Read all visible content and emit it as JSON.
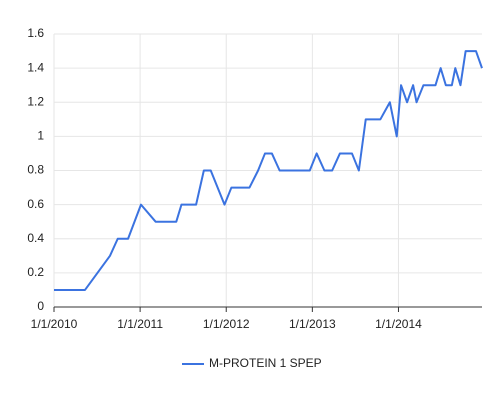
{
  "chart_data": {
    "type": "line",
    "x": [
      2010.0,
      2010.36,
      2010.65,
      2010.74,
      2010.86,
      2011.01,
      2011.18,
      2011.42,
      2011.48,
      2011.65,
      2011.74,
      2011.82,
      2011.98,
      2012.06,
      2012.27,
      2012.37,
      2012.45,
      2012.53,
      2012.62,
      2012.97,
      2013.05,
      2013.14,
      2013.23,
      2013.32,
      2013.46,
      2013.54,
      2013.62,
      2013.79,
      2013.9,
      2013.98,
      2014.03,
      2014.1,
      2014.17,
      2014.21,
      2014.29,
      2014.43,
      2014.49,
      2014.55,
      2014.62,
      2014.66,
      2014.72,
      2014.78,
      2014.9,
      2014.97
    ],
    "series": [
      {
        "name": "M-PROTEIN 1 SPEP",
        "color": "#3b73e0",
        "values": [
          0.1,
          0.1,
          0.3,
          0.4,
          0.4,
          0.6,
          0.5,
          0.5,
          0.6,
          0.6,
          0.8,
          0.8,
          0.6,
          0.7,
          0.7,
          0.8,
          0.9,
          0.9,
          0.8,
          0.8,
          0.9,
          0.8,
          0.8,
          0.9,
          0.9,
          0.8,
          1.1,
          1.1,
          1.2,
          1.0,
          1.3,
          1.2,
          1.3,
          1.2,
          1.3,
          1.3,
          1.4,
          1.3,
          1.3,
          1.4,
          1.3,
          1.5,
          1.5,
          1.4
        ]
      }
    ],
    "xlim": [
      2010,
      2014.97
    ],
    "xticks": [
      {
        "value": 2010,
        "label": "1/1/2010"
      },
      {
        "value": 2011,
        "label": "1/1/2011"
      },
      {
        "value": 2012,
        "label": "1/1/2012"
      },
      {
        "value": 2013,
        "label": "1/1/2013"
      },
      {
        "value": 2014,
        "label": "1/1/2014"
      }
    ],
    "ylim": [
      0,
      1.6
    ],
    "yticks": [
      0,
      0.2,
      0.4,
      0.6,
      0.8,
      1,
      1.2,
      1.4,
      1.6
    ],
    "grid": true,
    "legend": "bottom"
  }
}
